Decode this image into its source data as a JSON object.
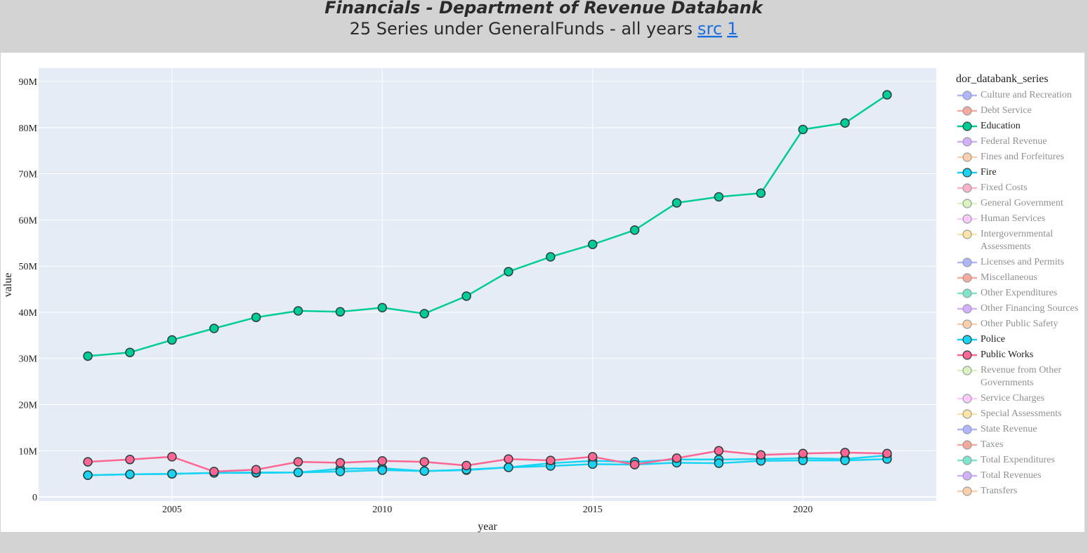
{
  "chart_data": {
    "type": "line",
    "title": "Financials - Department of Revenue Databank",
    "subtitle": "25 Series under GeneralFunds - all years",
    "links": [
      "src",
      "1"
    ],
    "x_label": "year",
    "y_label": "value",
    "legend_title": "dor_databank_series",
    "legend_position": "right",
    "grid": true,
    "xlim": [
      2001.83,
      2023.17
    ],
    "xticks": [
      2005,
      2010,
      2015,
      2020
    ],
    "ylim": [
      -900000,
      92900000
    ],
    "yticks": [
      0,
      {
        "value": 10000000,
        "label": "10M"
      },
      {
        "value": 20000000,
        "label": "20M"
      },
      {
        "value": 30000000,
        "label": "30M"
      },
      {
        "value": 40000000,
        "label": "40M"
      },
      {
        "value": 50000000,
        "label": "50M"
      },
      {
        "value": 60000000,
        "label": "60M"
      },
      {
        "value": 70000000,
        "label": "70M"
      },
      {
        "value": 80000000,
        "label": "80M"
      },
      {
        "value": 90000000,
        "label": "90M"
      }
    ],
    "x": [
      2003,
      2004,
      2005,
      2006,
      2007,
      2008,
      2009,
      2010,
      2011,
      2012,
      2013,
      2014,
      2015,
      2016,
      2017,
      2018,
      2019,
      2020,
      2021,
      2022
    ],
    "series": [
      {
        "name": "Culture and Recreation",
        "color": "#636efa",
        "visible": false
      },
      {
        "name": "Debt Service",
        "color": "#EF553B",
        "visible": false
      },
      {
        "name": "Education",
        "color": "#00cc96",
        "visible": true,
        "values": [
          30500000,
          31300000,
          34000000,
          36500000,
          38900000,
          40300000,
          40100000,
          41000000,
          39700000,
          43500000,
          48800000,
          52000000,
          54700000,
          57800000,
          63700000,
          65000000,
          65800000,
          79600000,
          81000000,
          87100000
        ]
      },
      {
        "name": "Federal Revenue",
        "color": "#ab63fa",
        "visible": false
      },
      {
        "name": "Fines and Forfeitures",
        "color": "#FFA15A",
        "visible": false
      },
      {
        "name": "Fire",
        "color": "#19d3f3",
        "visible": true,
        "values": [
          4700000,
          4900000,
          5000000,
          5200000,
          5200000,
          5300000,
          6100000,
          6200000,
          5600000,
          5800000,
          6400000,
          7300000,
          7800000,
          7600000,
          8100000,
          8100000,
          8200000,
          8400000,
          8200000,
          9000000
        ]
      },
      {
        "name": "Fixed Costs",
        "color": "#FF6692",
        "visible": false
      },
      {
        "name": "General Government",
        "color": "#B6E880",
        "visible": false
      },
      {
        "name": "Human Services",
        "color": "#FF97FF",
        "visible": false
      },
      {
        "name": "Intergovernmental Assessments",
        "color": "#FECB52",
        "visible": false
      },
      {
        "name": "Licenses and Permits",
        "color": "#636efa",
        "visible": false
      },
      {
        "name": "Miscellaneous",
        "color": "#EF553B",
        "visible": false
      },
      {
        "name": "Other Expenditures",
        "color": "#00cc96",
        "visible": false
      },
      {
        "name": "Other Financing Sources",
        "color": "#ab63fa",
        "visible": false
      },
      {
        "name": "Other Public Safety",
        "color": "#FFA15A",
        "visible": false
      },
      {
        "name": "Police",
        "color": "#19d3f3",
        "visible": true,
        "values": [
          4700000,
          4900000,
          5000000,
          5200000,
          5300000,
          5300000,
          5500000,
          5800000,
          5600000,
          5900000,
          6400000,
          6700000,
          7100000,
          7000000,
          7400000,
          7300000,
          7800000,
          7900000,
          7900000,
          8200000
        ]
      },
      {
        "name": "Public Works",
        "color": "#FF6692",
        "visible": true,
        "values": [
          7600000,
          8100000,
          8700000,
          5500000,
          5900000,
          7600000,
          7400000,
          7800000,
          7600000,
          6800000,
          8200000,
          7900000,
          8700000,
          7000000,
          8400000,
          10000000,
          9100000,
          9400000,
          9600000,
          9400000
        ]
      },
      {
        "name": "Revenue from Other Governments",
        "color": "#B6E880",
        "visible": false
      },
      {
        "name": "Service Charges",
        "color": "#FF97FF",
        "visible": false
      },
      {
        "name": "Special Assessments",
        "color": "#FECB52",
        "visible": false
      },
      {
        "name": "State Revenue",
        "color": "#636efa",
        "visible": false
      },
      {
        "name": "Taxes",
        "color": "#EF553B",
        "visible": false
      },
      {
        "name": "Total Expenditures",
        "color": "#00cc96",
        "visible": false
      },
      {
        "name": "Total Revenues",
        "color": "#ab63fa",
        "visible": false
      },
      {
        "name": "Transfers",
        "color": "#FFA15A",
        "visible": false
      }
    ]
  }
}
